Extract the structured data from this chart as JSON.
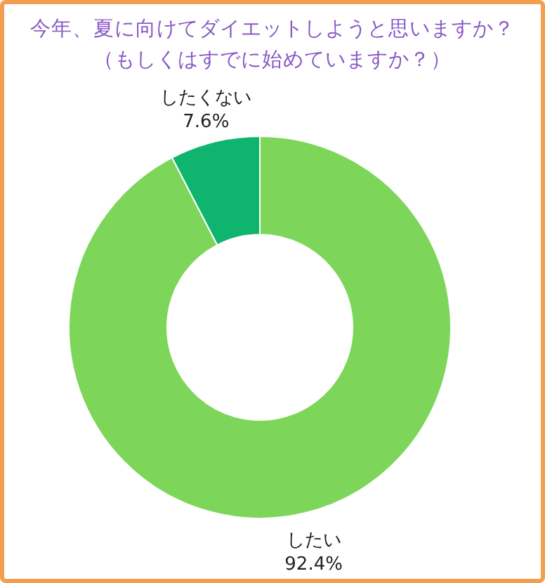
{
  "chart_data": {
    "type": "donut",
    "title": "今年、夏に向けてダイエットしようと思いますか？",
    "subtitle": "（もしくはすでに始めていますか？）",
    "categories": [
      "したい",
      "したくない"
    ],
    "values": [
      92.4,
      7.6
    ],
    "colors": [
      "#7dd65a",
      "#0fb56e"
    ],
    "value_labels": [
      "92.4%",
      "7.6%"
    ],
    "legend": false
  }
}
